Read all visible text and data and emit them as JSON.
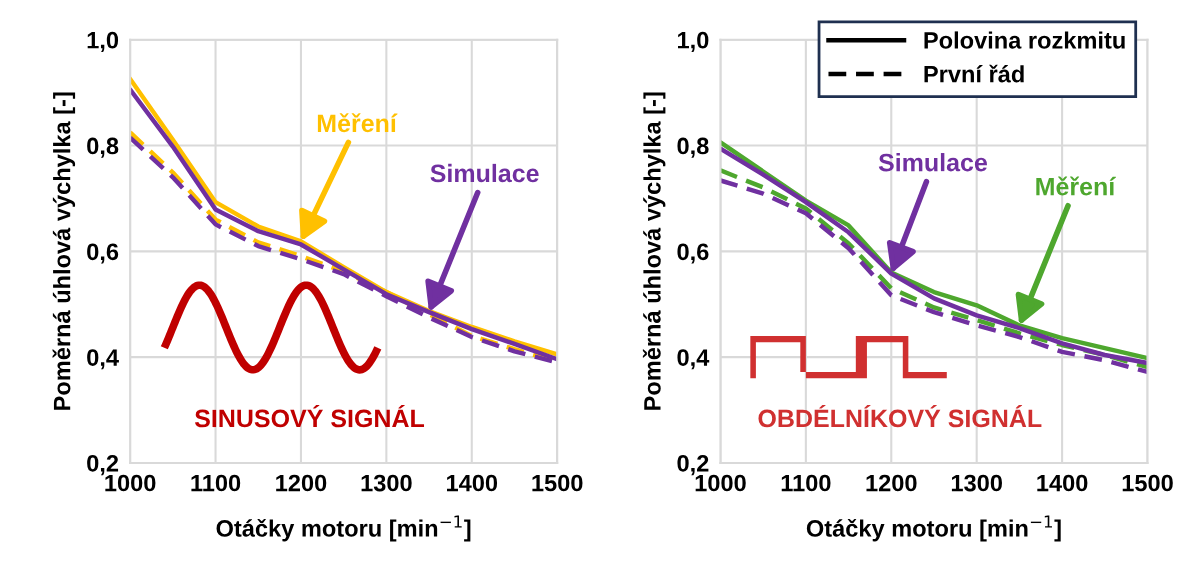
{
  "chart_data": [
    {
      "type": "line",
      "xlabel": "Otáčky motoru [min$^{−1}$]",
      "ylabel": "Poměrná úhlová výchylka [-]",
      "x": [
        1000,
        1050,
        1100,
        1150,
        1200,
        1250,
        1300,
        1350,
        1400,
        1450,
        1500
      ],
      "xlim": [
        1000,
        1500
      ],
      "xticks": [
        1000,
        1100,
        1200,
        1300,
        1400,
        1500
      ],
      "ylim": [
        0.2,
        1.0
      ],
      "yticks": [
        {
          "value": 0.2,
          "label": "0,2"
        },
        {
          "value": 0.4,
          "label": "0,4"
        },
        {
          "value": 0.6,
          "label": "0,6"
        },
        {
          "value": 0.8,
          "label": "0,8"
        },
        {
          "value": 1.0,
          "label": "1,0"
        }
      ],
      "grid": true,
      "series": [
        {
          "color": "#ffc000",
          "line_style": "dashed",
          "values": [
            0.825,
            0.749,
            0.66,
            0.617,
            0.591,
            0.562,
            0.523,
            0.481,
            0.44,
            0.415,
            0.392
          ]
        },
        {
          "color": "#7030a0",
          "line_style": "dashed",
          "values": [
            0.815,
            0.74,
            0.651,
            0.61,
            0.585,
            0.557,
            0.515,
            0.475,
            0.438,
            0.411,
            0.39
          ]
        },
        {
          "name": "Měření",
          "color": "#ffc000",
          "line_style": "solid",
          "values": [
            0.926,
            0.811,
            0.693,
            0.647,
            0.619,
            0.57,
            0.523,
            0.487,
            0.457,
            0.43,
            0.405
          ]
        },
        {
          "name": "Simulace",
          "color": "#7030a0",
          "line_style": "solid",
          "values": [
            0.906,
            0.798,
            0.679,
            0.638,
            0.613,
            0.566,
            0.519,
            0.485,
            0.453,
            0.425,
            0.396
          ]
        }
      ],
      "annotations": [
        "SINUSOVÝ SIGNÁL"
      ]
    },
    {
      "type": "line",
      "xlabel": "Otáčky motoru [min$^{−1}$]",
      "ylabel": "Poměrná úhlová výchylka [-]",
      "x": [
        1000,
        1050,
        1100,
        1150,
        1200,
        1250,
        1300,
        1350,
        1400,
        1450,
        1500
      ],
      "xlim": [
        1000,
        1500
      ],
      "xticks": [
        1000,
        1100,
        1200,
        1300,
        1400,
        1500
      ],
      "ylim": [
        0.2,
        1.0
      ],
      "yticks": [
        {
          "value": 0.2,
          "label": "0,2"
        },
        {
          "value": 0.4,
          "label": "0,4"
        },
        {
          "value": 0.6,
          "label": "0,6"
        },
        {
          "value": 0.8,
          "label": "0,8"
        },
        {
          "value": 1.0,
          "label": "1,0"
        }
      ],
      "grid": true,
      "legend": "top right",
      "series": [
        {
          "name": "Polovina rozkmitu",
          "color": "#000000",
          "line_style": "solid",
          "values": [
            null,
            null,
            null,
            null,
            null,
            null,
            null,
            null,
            null,
            null,
            null
          ]
        },
        {
          "name": "První řád",
          "color": "#000000",
          "line_style": "dashed",
          "values": [
            null,
            null,
            null,
            null,
            null,
            null,
            null,
            null,
            null,
            null,
            null
          ]
        },
        {
          "color": "#4ea72e",
          "line_style": "dashed",
          "values": [
            0.753,
            0.721,
            0.681,
            0.615,
            0.53,
            0.494,
            0.47,
            0.445,
            0.423,
            0.404,
            0.381
          ]
        },
        {
          "color": "#7030a0",
          "line_style": "dashed",
          "values": [
            0.734,
            0.709,
            0.672,
            0.606,
            0.517,
            0.485,
            0.46,
            0.438,
            0.41,
            0.394,
            0.372
          ]
        },
        {
          "name": "Měření",
          "color": "#4ea72e",
          "line_style": "solid",
          "values": [
            0.806,
            0.751,
            0.696,
            0.649,
            0.56,
            0.523,
            0.498,
            0.46,
            0.436,
            0.417,
            0.398
          ]
        },
        {
          "name": "Simulace",
          "color": "#7030a0",
          "line_style": "solid",
          "values": [
            0.794,
            0.745,
            0.693,
            0.636,
            0.558,
            0.511,
            0.479,
            0.455,
            0.426,
            0.404,
            0.389
          ]
        }
      ],
      "annotations": [
        "OBDÉLNÍKOVÝ SIGNÁL"
      ]
    }
  ]
}
